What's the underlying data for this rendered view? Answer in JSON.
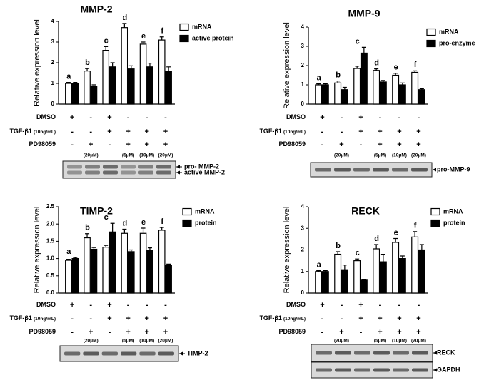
{
  "chart_data": [
    {
      "type": "bar",
      "title": "MMP-2",
      "y_label": "Relative expression level",
      "ylim": [
        0,
        4
      ],
      "yticks": [
        0,
        1,
        2,
        3,
        4
      ],
      "series": [
        {
          "name": "mRNA",
          "color": "#ffffff",
          "values": [
            1.0,
            1.6,
            2.6,
            3.7,
            2.9,
            3.1
          ],
          "errors": [
            0.05,
            0.12,
            0.18,
            0.2,
            0.1,
            0.15
          ]
        },
        {
          "name": "active protein",
          "color": "#000000",
          "values": [
            1.0,
            0.85,
            1.8,
            1.7,
            1.8,
            1.6
          ],
          "errors": [
            0.05,
            0.08,
            0.2,
            0.15,
            0.18,
            0.2
          ]
        }
      ],
      "letters": [
        "a",
        "b",
        "c",
        "d",
        "e",
        "f"
      ],
      "treatments": [
        {
          "label": "DMSO",
          "signs": [
            "+",
            "-",
            "+",
            "-",
            "-",
            "-"
          ]
        },
        {
          "label": "TGF-β1",
          "note": "(10ng/mL)",
          "signs": [
            "-",
            "-",
            "+",
            "+",
            "+",
            "+"
          ]
        },
        {
          "label": "PD98059",
          "signs": [
            "-",
            "+",
            "-",
            "+",
            "+",
            "+"
          ]
        }
      ],
      "doses": [
        null,
        "(20μM)",
        null,
        "(5μM)",
        "(10μM)",
        "(20μM)"
      ],
      "blot_labels": [
        "pro- MMP-2",
        "active MMP-2"
      ]
    },
    {
      "type": "bar",
      "title": "MMP-9",
      "y_label": "Relative expression level",
      "ylim": [
        0,
        4
      ],
      "yticks": [
        0,
        1,
        2,
        3,
        4
      ],
      "series": [
        {
          "name": "mRNA",
          "color": "#ffffff",
          "values": [
            1.0,
            1.1,
            1.85,
            1.75,
            1.5,
            1.65
          ],
          "errors": [
            0.05,
            0.1,
            0.12,
            0.08,
            0.1,
            0.08
          ]
        },
        {
          "name": "pro-enzyme",
          "color": "#000000",
          "values": [
            1.0,
            0.75,
            2.65,
            1.15,
            1.0,
            0.75
          ],
          "errors": [
            0.05,
            0.12,
            0.3,
            0.08,
            0.1,
            0.05
          ]
        }
      ],
      "letters": [
        "a",
        "b",
        "c",
        "d",
        "e",
        "f"
      ],
      "treatments": [
        {
          "label": "DMSO",
          "signs": [
            "+",
            "-",
            "+",
            "-",
            "-",
            "-"
          ]
        },
        {
          "label": "TGF-β1",
          "note": "(10ng/mL)",
          "signs": [
            "-",
            "-",
            "+",
            "+",
            "+",
            "+"
          ]
        },
        {
          "label": "PD98059",
          "signs": [
            "-",
            "+",
            "-",
            "+",
            "+",
            "+"
          ]
        }
      ],
      "doses": [
        null,
        "(20μM)",
        null,
        "(5μM)",
        "(10μM)",
        "(20μM)"
      ],
      "blot_labels": [
        "pro-MMP-9"
      ]
    },
    {
      "type": "bar",
      "title": "TIMP-2",
      "y_label": "Relative expression level",
      "ylim": [
        0,
        2.5
      ],
      "yticks": [
        {
          "value": 0,
          "label": "0.0"
        },
        {
          "value": 0.5,
          "label": "0.5"
        },
        {
          "value": 1,
          "label": "1.0"
        },
        {
          "value": 1.5,
          "label": "1.5"
        },
        {
          "value": 2,
          "label": "2.0"
        },
        {
          "value": 2.5,
          "label": "2.5"
        }
      ],
      "series": [
        {
          "name": "mRNA",
          "color": "#ffffff",
          "values": [
            0.95,
            1.6,
            1.33,
            1.73,
            1.73,
            1.82
          ],
          "errors": [
            0.03,
            0.12,
            0.05,
            0.12,
            0.15,
            0.08
          ]
        },
        {
          "name": "protein",
          "color": "#000000",
          "values": [
            1.0,
            1.27,
            1.77,
            1.2,
            1.23,
            0.8
          ],
          "errors": [
            0.03,
            0.05,
            0.25,
            0.05,
            0.08,
            0.04
          ]
        }
      ],
      "letters": [
        "a",
        "b",
        "c",
        "d",
        "e",
        "f"
      ],
      "treatments": [
        {
          "label": "DMSO",
          "signs": [
            "+",
            "-",
            "+",
            "-",
            "-",
            "-"
          ]
        },
        {
          "label": "TGF-β1",
          "note": "(10ng/mL)",
          "signs": [
            "-",
            "-",
            "+",
            "+",
            "+",
            "+"
          ]
        },
        {
          "label": "PD98059",
          "signs": [
            "-",
            "+",
            "-",
            "+",
            "+",
            "+"
          ]
        }
      ],
      "doses": [
        null,
        "(20μM)",
        null,
        "(5μM)",
        "(10μM)",
        "(20μM)"
      ],
      "blot_labels": [
        "TIMP-2"
      ]
    },
    {
      "type": "bar",
      "title": "RECK",
      "y_label": "Relative expression level",
      "ylim": [
        0,
        4
      ],
      "yticks": [
        0,
        1,
        2,
        3,
        4
      ],
      "series": [
        {
          "name": "mRNA",
          "color": "#ffffff",
          "values": [
            1.0,
            1.8,
            1.5,
            2.05,
            2.35,
            2.6
          ],
          "errors": [
            0.04,
            0.12,
            0.08,
            0.2,
            0.18,
            0.25
          ]
        },
        {
          "name": "protein",
          "color": "#000000",
          "values": [
            1.0,
            1.05,
            0.6,
            1.45,
            1.6,
            2.0
          ],
          "errors": [
            0.04,
            0.25,
            0.03,
            0.35,
            0.12,
            0.25
          ]
        }
      ],
      "letters": [
        "a",
        "b",
        "c",
        "d",
        "e",
        "f"
      ],
      "treatments": [
        {
          "label": "DMSO",
          "signs": [
            "+",
            "-",
            "+",
            "-",
            "-",
            "-"
          ]
        },
        {
          "label": "TGF-β1",
          "note": "(10ng/mL)",
          "signs": [
            "-",
            "-",
            "+",
            "+",
            "+",
            "+"
          ]
        },
        {
          "label": "PD98059",
          "signs": [
            "-",
            "+",
            "-",
            "+",
            "+",
            "+"
          ]
        }
      ],
      "doses": [
        null,
        "(20μM)",
        null,
        "(5μM)",
        "(10μM)",
        "(20μM)"
      ],
      "blot_labels": [
        "RECK",
        "GAPDH"
      ]
    }
  ]
}
